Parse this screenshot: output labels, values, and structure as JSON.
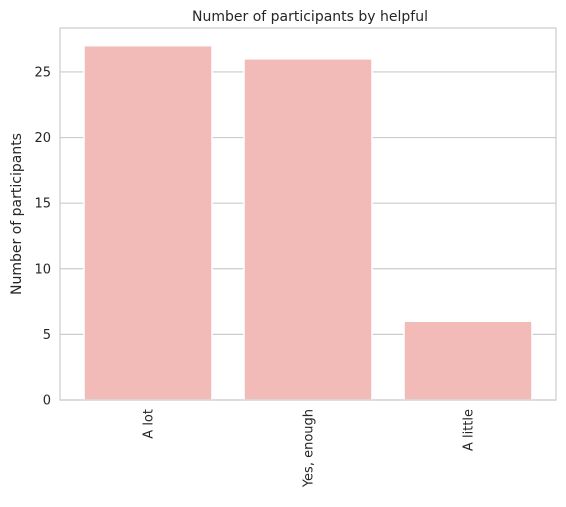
{
  "chart_data": {
    "type": "bar",
    "title": "Number of participants by helpful",
    "xlabel": "",
    "ylabel": "Number of participants",
    "categories": [
      "A lot",
      "Yes, enough",
      "A little"
    ],
    "values": [
      27,
      26,
      6
    ],
    "yticks": [
      0,
      5,
      10,
      15,
      20,
      25
    ],
    "ylim": [
      0,
      28.35
    ],
    "grid": "horizontal",
    "bar_color": "#f2bbb8",
    "grid_color": "#cccccc"
  }
}
